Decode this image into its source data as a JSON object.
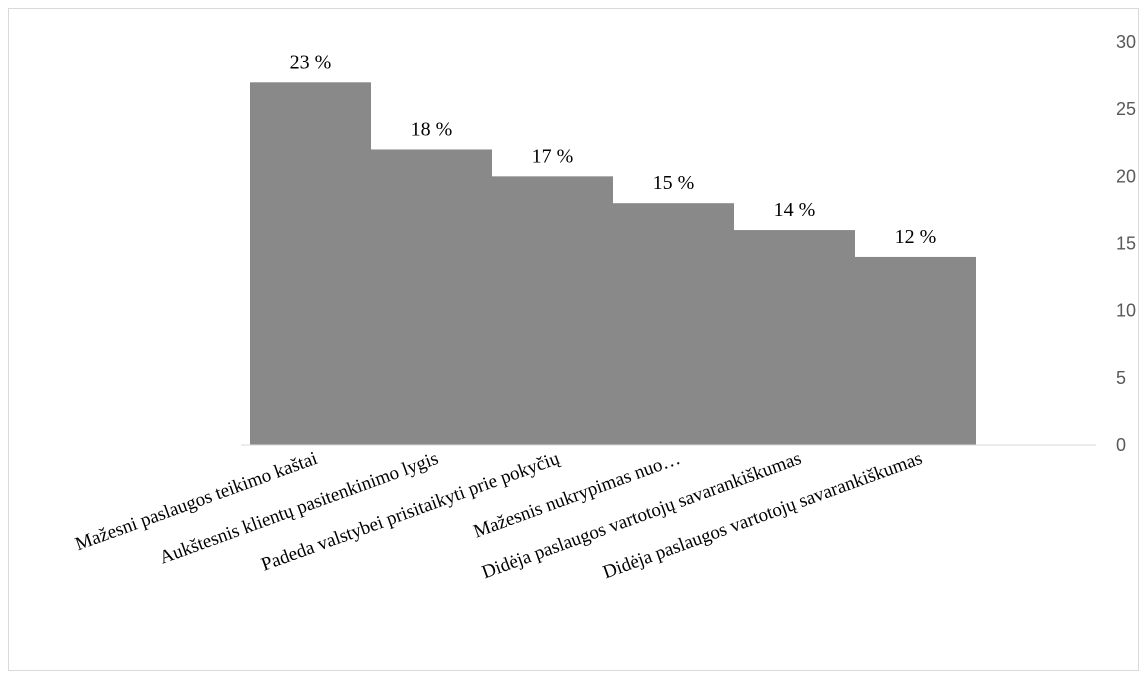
{
  "chart_data": {
    "type": "bar",
    "categories": [
      "Mažesni paslaugos teikimo kaštai",
      "Aukštesnis klientų pasitenkinimo lygis",
      "Padeda valstybei prisitaikyti prie pokyčių",
      "Mažesnis nukrypimas nuo…",
      "Didėja paslaugos vartotojų savarankiškumas",
      "Didėja paslaugos vartotojų savarankiškumas"
    ],
    "values": [
      27,
      22,
      20,
      18,
      16,
      14
    ],
    "data_labels": [
      "23 %",
      "18 %",
      "17 %",
      "15 %",
      "14 %",
      "12 %"
    ],
    "y_ticks": [
      "0",
      "5",
      "10",
      "15",
      "20",
      "25",
      "30"
    ],
    "ylim": [
      0,
      30
    ],
    "y_axis_position": "right",
    "grid": false,
    "bar_color": "#898989",
    "axis_color": "#d9d9d9"
  }
}
